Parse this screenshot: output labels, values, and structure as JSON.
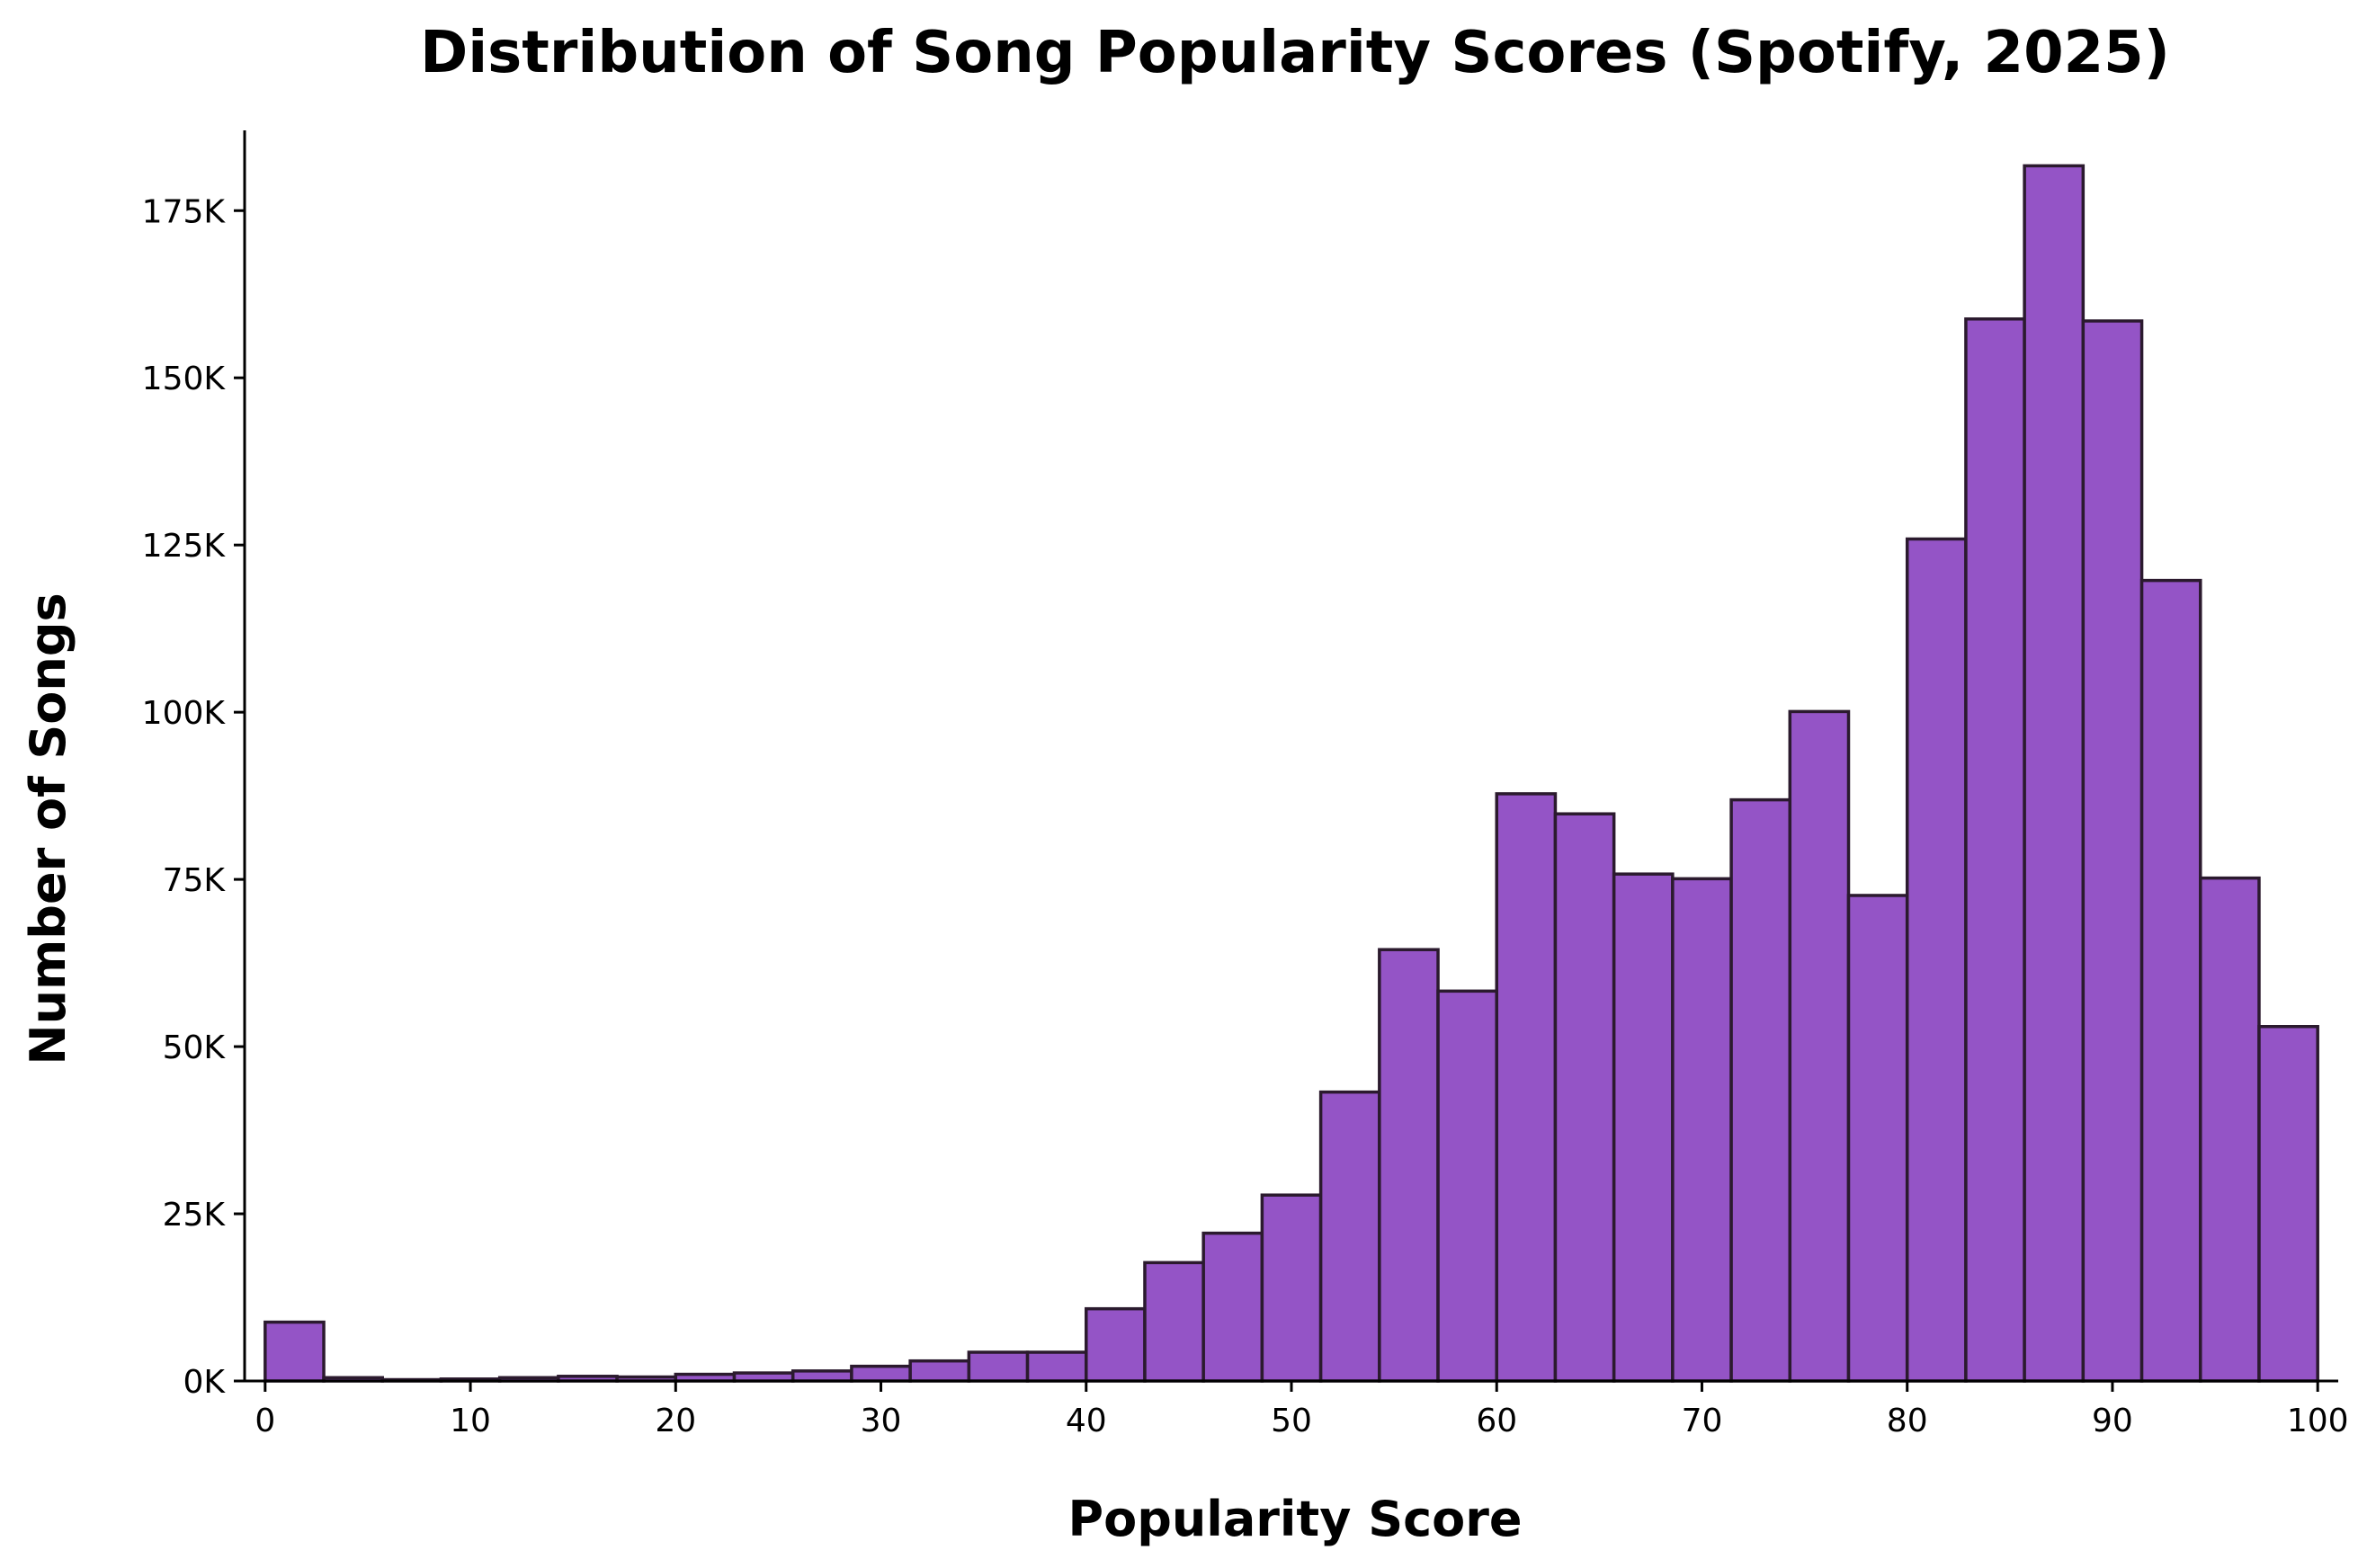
{
  "chart_data": {
    "type": "bar",
    "subtype": "histogram",
    "title": "Distribution of Song Popularity Scores (Spotify, 2025)",
    "xlabel": "Popularity Score",
    "ylabel": "Number of Songs",
    "xlim": [
      -1,
      101
    ],
    "ylim": [
      0,
      187000
    ],
    "bin_width": 2.857,
    "bin_edges": [
      0,
      2.857,
      5.714,
      8.571,
      11.429,
      14.286,
      17.143,
      20,
      22.857,
      25.714,
      28.571,
      31.429,
      34.286,
      37.143,
      40,
      42.857,
      45.714,
      48.571,
      51.429,
      54.286,
      57.143,
      60,
      62.857,
      65.714,
      68.571,
      71.429,
      74.286,
      77.143,
      80,
      82.857,
      85.714,
      88.571,
      91.429,
      94.286,
      97.143,
      100
    ],
    "values": [
      8800,
      500,
      200,
      300,
      500,
      700,
      600,
      1000,
      1200,
      1500,
      2200,
      3000,
      4300,
      4300,
      10800,
      17700,
      22100,
      27800,
      43200,
      64500,
      58300,
      87800,
      84800,
      75800,
      75100,
      86900,
      100100,
      72600,
      125900,
      158800,
      181700,
      158500,
      119700,
      75200,
      53000
    ],
    "xticks": [
      0,
      10,
      20,
      30,
      40,
      50,
      60,
      70,
      80,
      90,
      100
    ],
    "xtick_labels": [
      "0",
      "10",
      "20",
      "30",
      "40",
      "50",
      "60",
      "70",
      "80",
      "90",
      "100"
    ],
    "yticks": [
      0,
      25000,
      50000,
      75000,
      100000,
      125000,
      150000,
      175000
    ],
    "ytick_labels": [
      "0K",
      "25K",
      "50K",
      "75K",
      "100K",
      "125K",
      "150K",
      "175K"
    ],
    "grid": false,
    "legend": "none",
    "colors": {
      "bar_fill": "#9454c6",
      "bar_edge": "#2b1a2e",
      "axis": "#000000",
      "text": "#000000"
    }
  }
}
